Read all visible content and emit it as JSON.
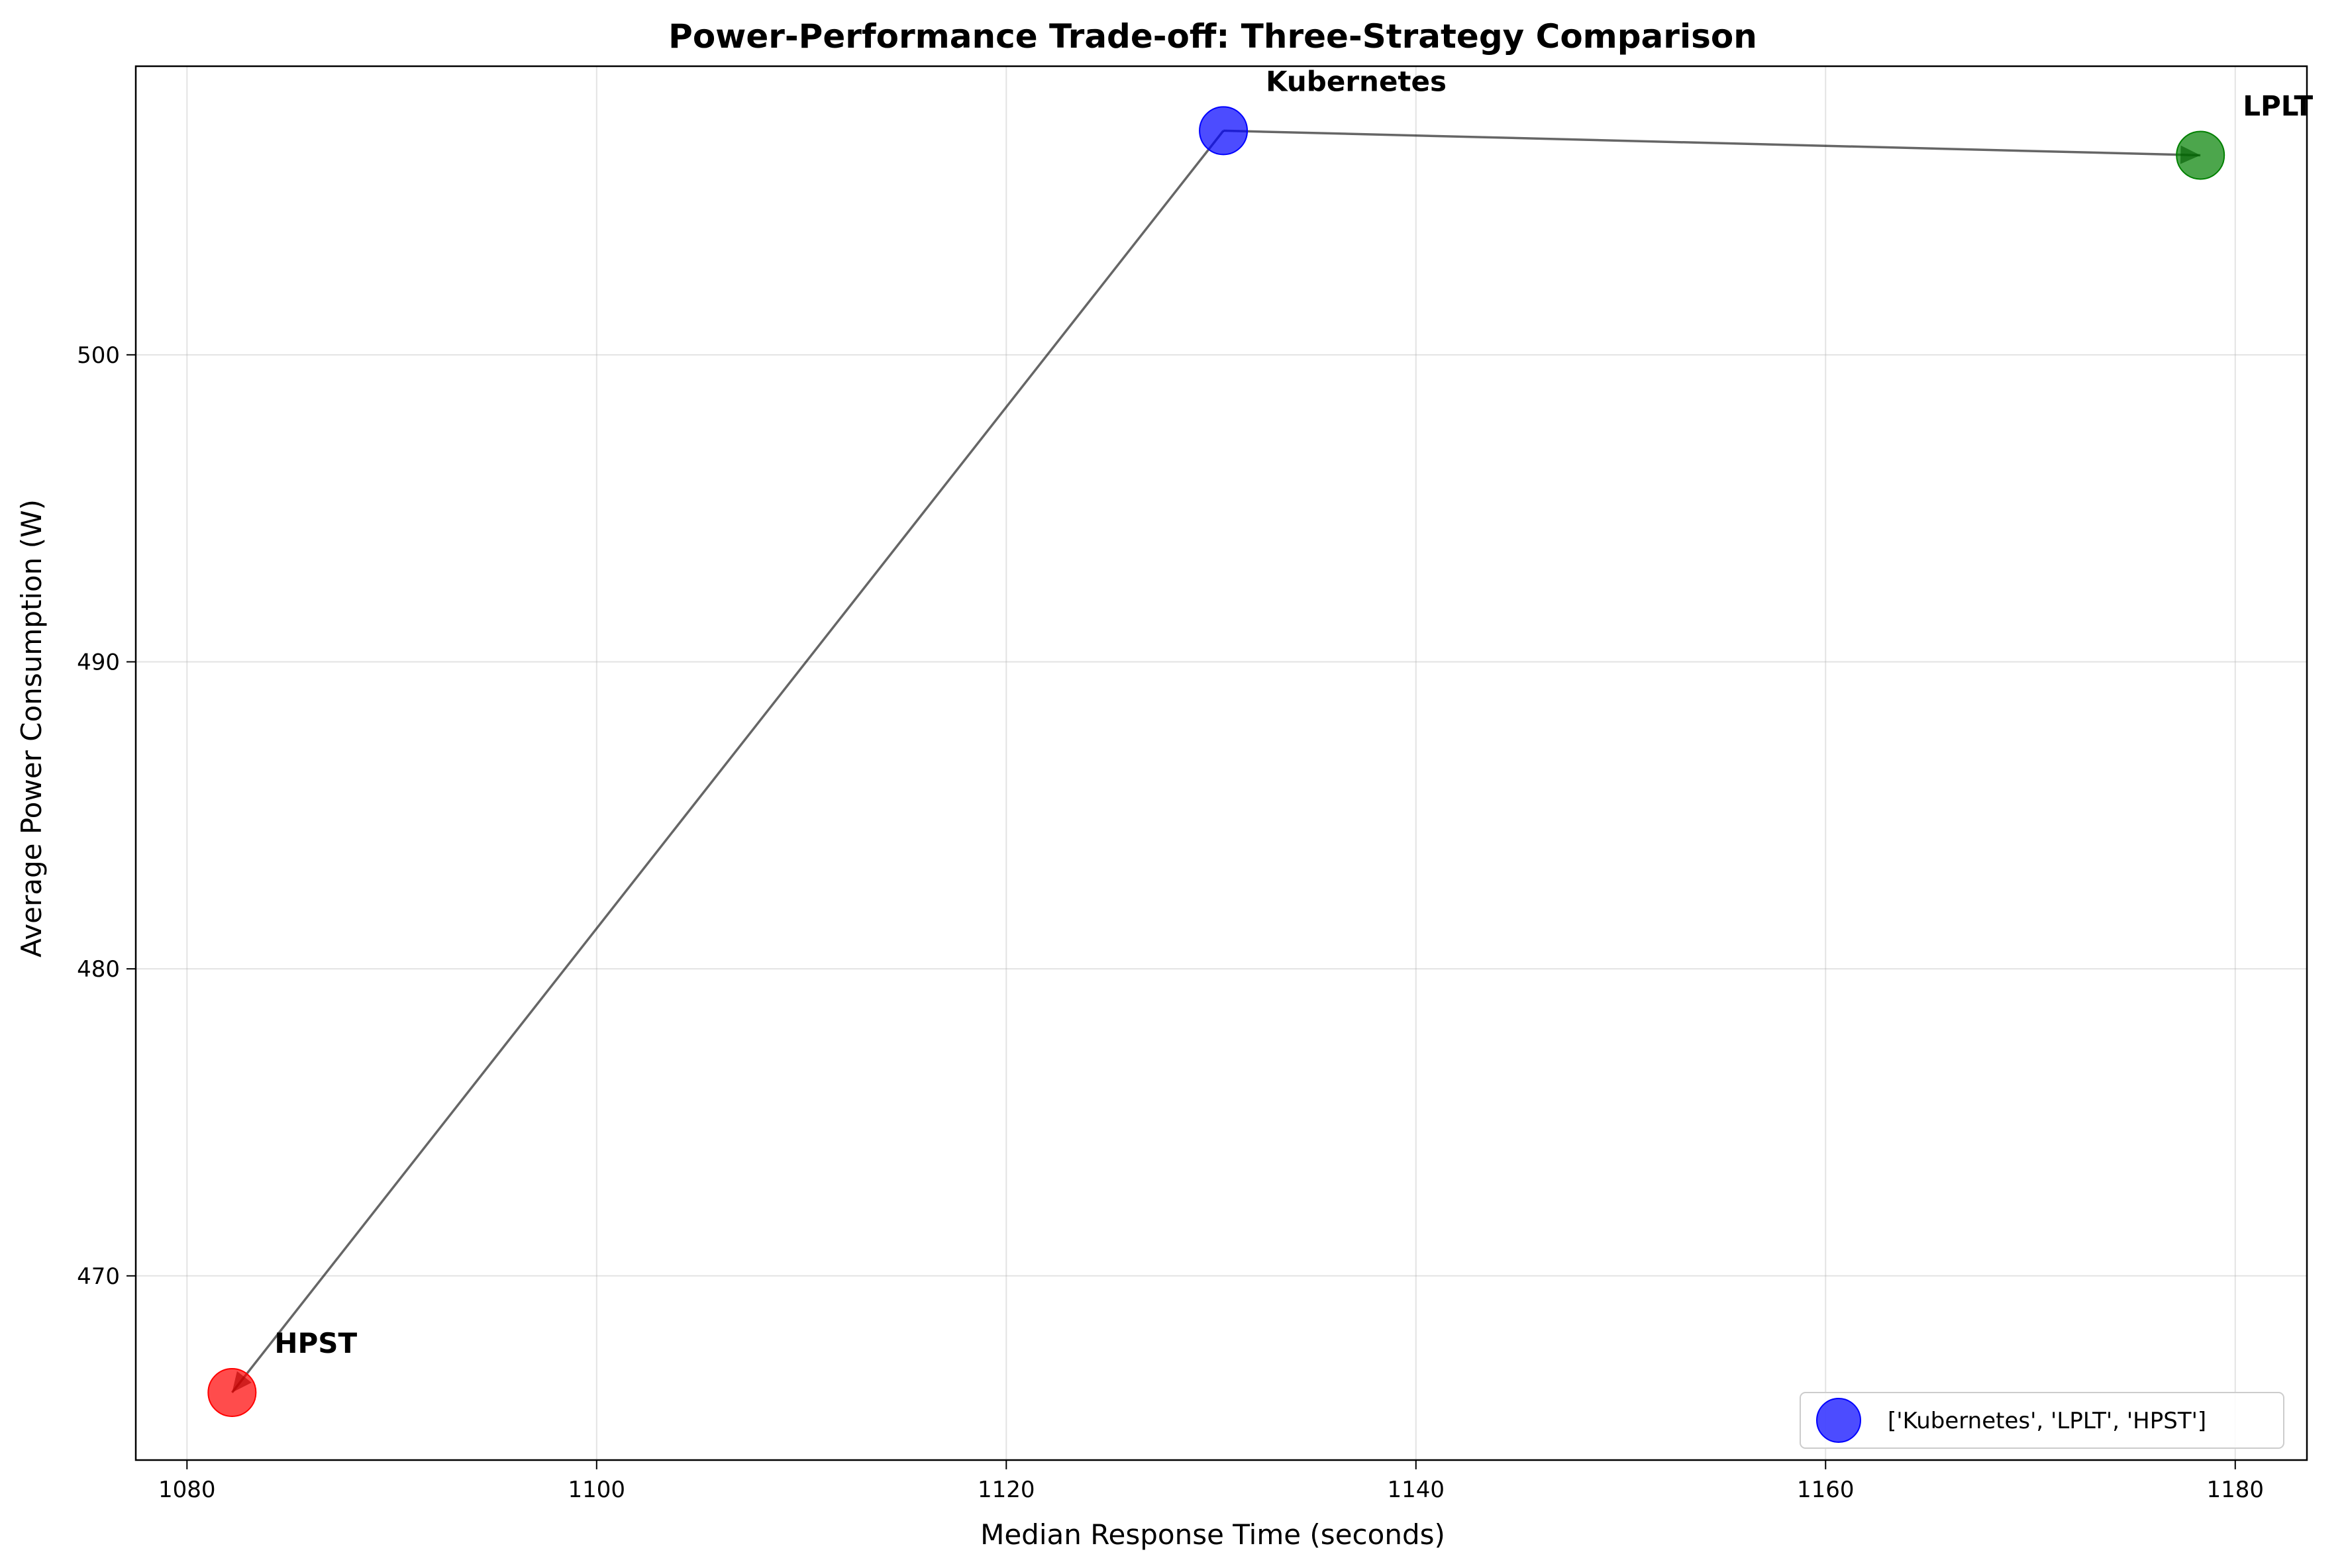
{
  "chart_data": {
    "type": "scatter",
    "title": "Power-Performance Trade-off: Three-Strategy Comparison",
    "xlabel": "Median Response Time (seconds)",
    "ylabel": "Average Power Consumption (W)",
    "xlim": [
      1077.5,
      1183.5
    ],
    "ylim": [
      464.0,
      509.4
    ],
    "xticks": [
      1080,
      1100,
      1120,
      1140,
      1160,
      1180
    ],
    "yticks": [
      470,
      480,
      490,
      500
    ],
    "grid": true,
    "legend": {
      "placement": "lower-right",
      "label": "['Kubernetes', 'LPLT', 'HPST']"
    },
    "points": [
      {
        "name": "Kubernetes",
        "x": 1130.6,
        "y": 507.3,
        "color": "#0000ff"
      },
      {
        "name": "LPLT",
        "x": 1178.3,
        "y": 506.5,
        "color": "#008000"
      },
      {
        "name": "HPST",
        "x": 1082.2,
        "y": 466.2,
        "color": "#ff0000"
      }
    ],
    "arrows": [
      {
        "from": "Kubernetes",
        "to": "LPLT"
      },
      {
        "from": "Kubernetes",
        "to": "HPST"
      }
    ]
  }
}
